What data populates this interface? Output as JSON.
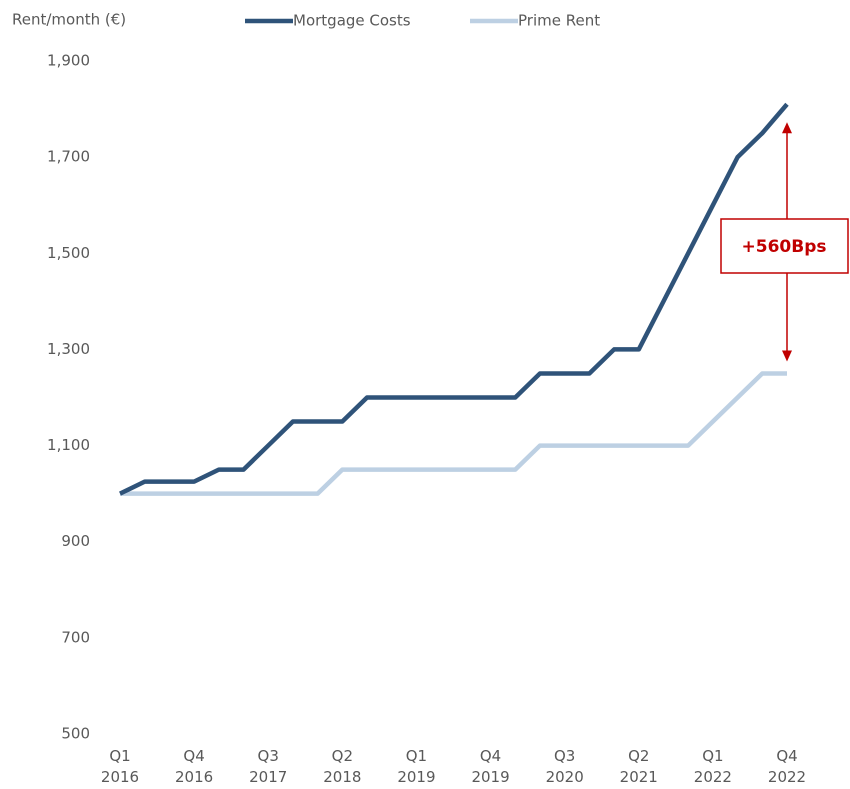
{
  "chart_data": {
    "type": "line",
    "y_label": "Rent/month (€)",
    "annotation": "+560Bps",
    "categories": [
      "Q1 2016",
      null,
      null,
      "Q4 2016",
      null,
      null,
      "Q3 2017",
      null,
      null,
      "Q2 2018",
      null,
      null,
      "Q1 2019",
      null,
      null,
      "Q4 2019",
      null,
      null,
      "Q3 2020",
      null,
      null,
      "Q2 2021",
      null,
      null,
      "Q1 2022",
      null,
      null,
      "Q4 2022"
    ],
    "series": [
      {
        "name": "Mortgage Costs",
        "color": "#2f5379",
        "values": [
          1000,
          1025,
          1025,
          1025,
          1050,
          1050,
          1100,
          1150,
          1150,
          1150,
          1200,
          1200,
          1200,
          1200,
          1200,
          1200,
          1200,
          1250,
          1250,
          1250,
          1300,
          1300,
          1400,
          1500,
          1600,
          1700,
          1750,
          1810
        ]
      },
      {
        "name": "Prime Rent",
        "color": "#bdd0e3",
        "values": [
          1000,
          1000,
          1000,
          1000,
          1000,
          1000,
          1000,
          1000,
          1000,
          1050,
          1050,
          1050,
          1050,
          1050,
          1050,
          1050,
          1050,
          1100,
          1100,
          1100,
          1100,
          1100,
          1100,
          1100,
          1150,
          1200,
          1250,
          1250
        ]
      }
    ],
    "ylim": [
      500,
      1900
    ],
    "yticks": [
      500,
      700,
      900,
      {
        "value": 1100,
        "label": "1,100"
      },
      {
        "value": 1300,
        "label": "1,300"
      },
      {
        "value": 1500,
        "label": "1,500"
      },
      {
        "value": 1700,
        "label": "1,700"
      },
      {
        "value": 1900,
        "label": "1,900"
      }
    ]
  }
}
